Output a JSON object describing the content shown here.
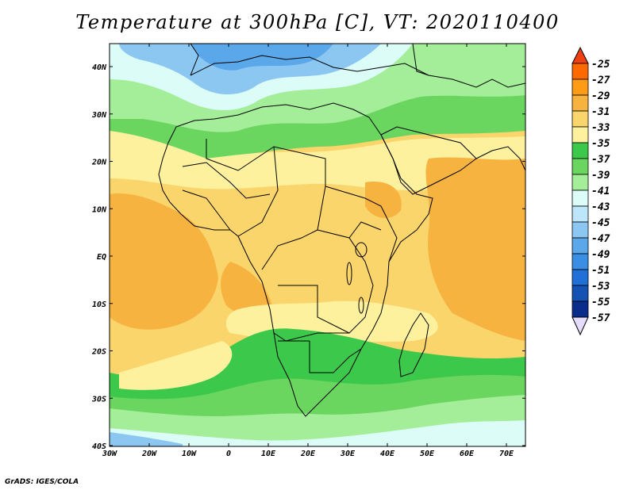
{
  "title": "Temperature at 300hPa [C], VT: 2020110400",
  "footer": "GrADS: IGES/COLA",
  "map": {
    "lon_labels": [
      "30W",
      "20W",
      "10W",
      "0",
      "10E",
      "20E",
      "30E",
      "40E",
      "50E",
      "60E",
      "70E"
    ],
    "lat_labels": [
      "40N",
      "30N",
      "20N",
      "10N",
      "EQ",
      "10S",
      "20S",
      "30S",
      "40S"
    ]
  },
  "colorbar": {
    "labels": [
      "-25",
      "-27",
      "-29",
      "-31",
      "-33",
      "-35",
      "-37",
      "-39",
      "-41",
      "-43",
      "-45",
      "-47",
      "-49",
      "-51",
      "-53",
      "-55",
      "-57"
    ],
    "colors": {
      "gt-25": "#ee4010",
      "-25": "#ff6a00",
      "-27": "#ff9b15",
      "-29": "#f7b340",
      "-31": "#fad56b",
      "-33": "#fdf19e",
      "-35": "#3cc84a",
      "-37": "#6ad660",
      "-39": "#a4ee9a",
      "-41": "#dcfcf8",
      "-43": "#bde6fa",
      "-45": "#8cc7f2",
      "-47": "#5aa8ea",
      "-49": "#3a8ee4",
      "-51": "#2070d8",
      "-53": "#1452b4",
      "-55": "#0a2c8a",
      "lt-57": "#e4dcfa"
    }
  }
}
